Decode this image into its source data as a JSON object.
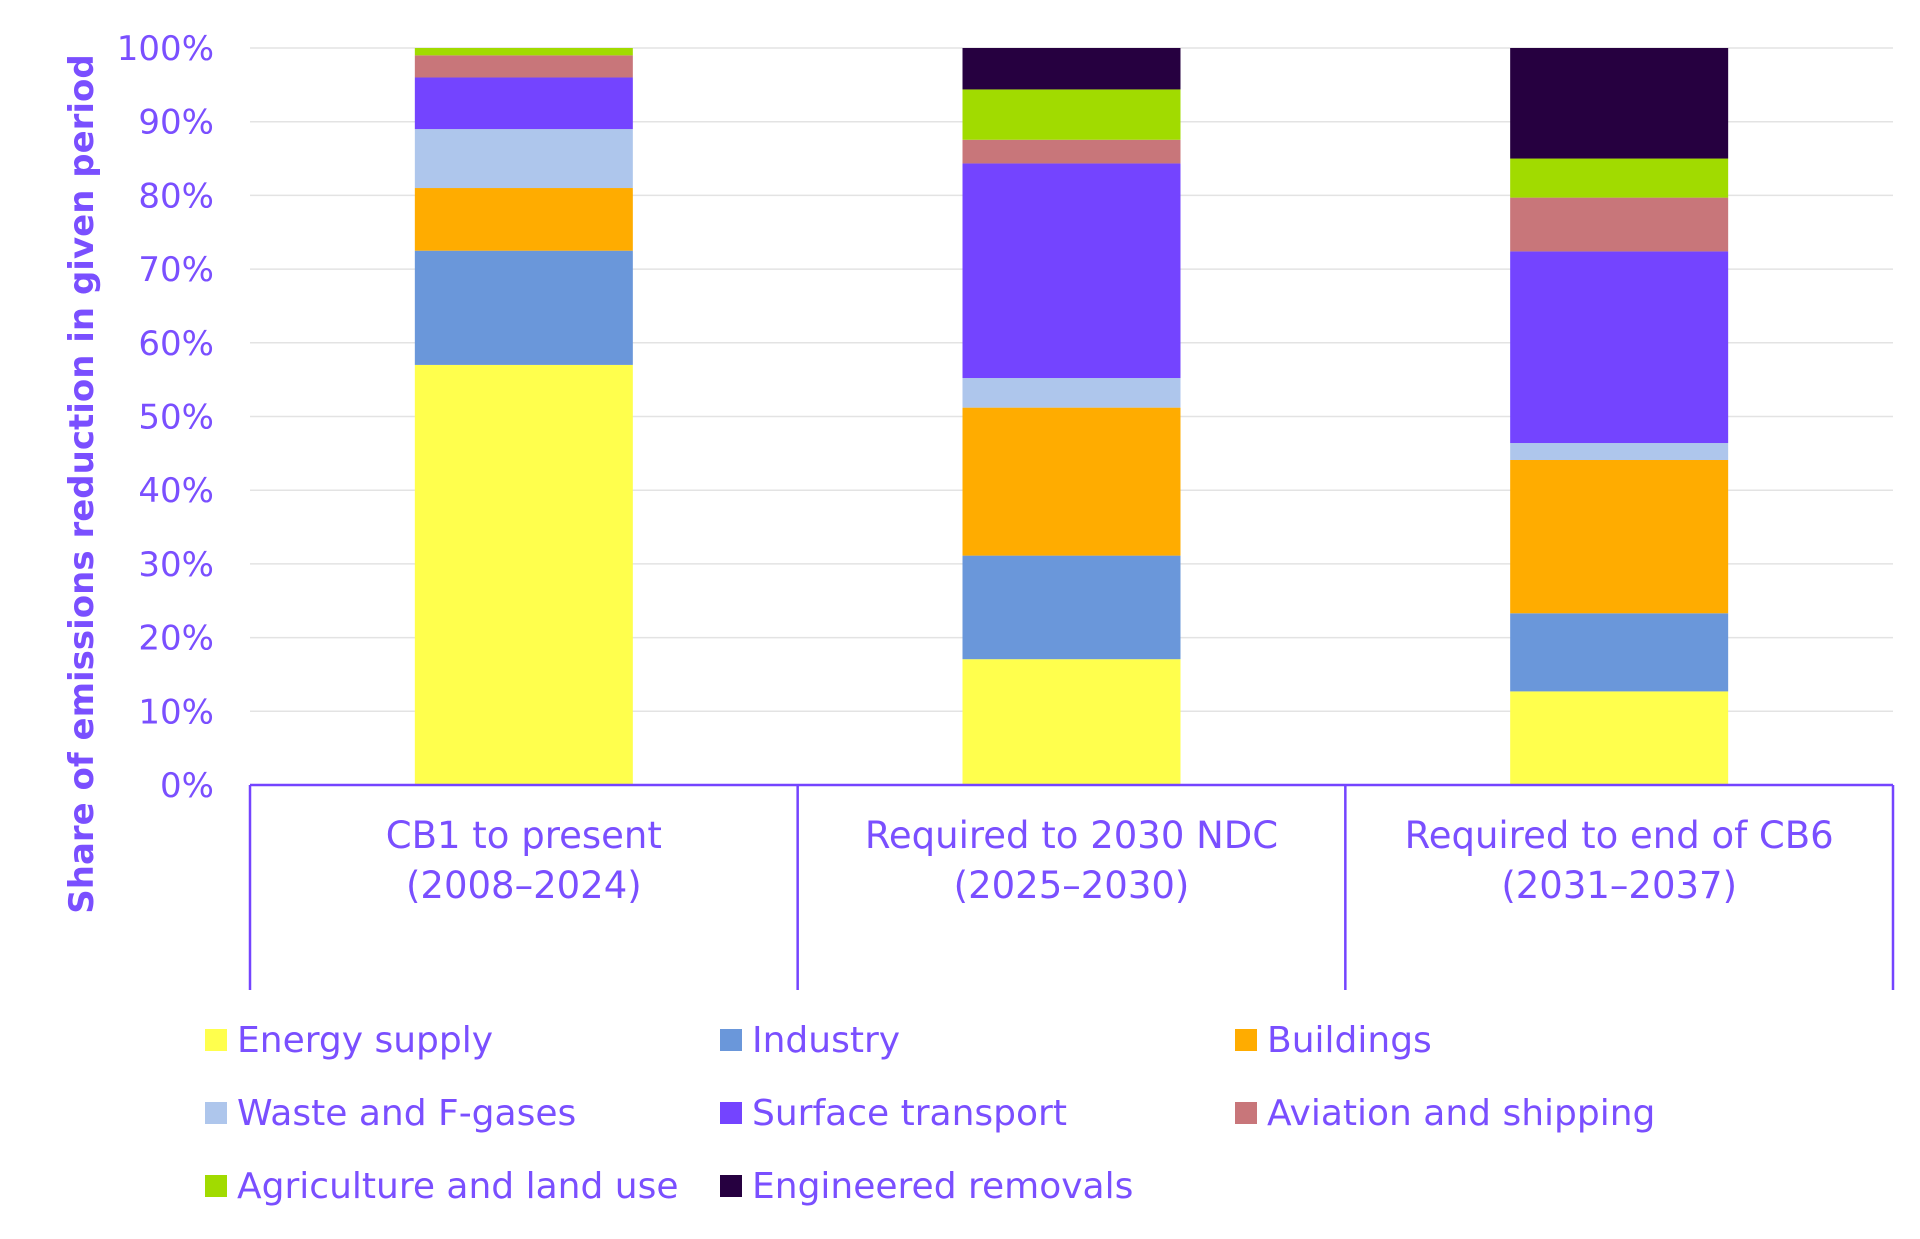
{
  "chart_data": {
    "type": "bar",
    "stacked": true,
    "title": "",
    "xlabel": "",
    "ylabel": "Share of emissions reduction in given period",
    "ylim": [
      0,
      100
    ],
    "ytick_values": [
      0,
      10,
      20,
      30,
      40,
      50,
      60,
      70,
      80,
      90,
      100
    ],
    "ytick_labels": [
      "0%",
      "10%",
      "20%",
      "30%",
      "40%",
      "50%",
      "60%",
      "70%",
      "80%",
      "90%",
      "100%"
    ],
    "grid": true,
    "legend_position": "bottom",
    "categories": [
      [
        "CB1 to present",
        "(2008–2024)"
      ],
      [
        "Required to 2030 NDC",
        "(2025–2030)"
      ],
      [
        "Required to end of CB6",
        "(2031–2037)"
      ]
    ],
    "series": [
      {
        "name": "Energy supply",
        "color": "#ffff4d",
        "values": [
          57,
          17,
          12.7
        ]
      },
      {
        "name": "Industry",
        "color": "#6a97da",
        "values": [
          15.5,
          14,
          10.6
        ]
      },
      {
        "name": "Buildings",
        "color": "#ffac00",
        "values": [
          8.5,
          20,
          20.8
        ]
      },
      {
        "name": "Waste and F-gases",
        "color": "#aec6ec",
        "values": [
          8,
          4,
          2.3
        ]
      },
      {
        "name": "Surface transport",
        "color": "#7444ff",
        "values": [
          7,
          29,
          26
        ]
      },
      {
        "name": "Aviation and shipping",
        "color": "#c8767a",
        "values": [
          3,
          3.2,
          7.3
        ]
      },
      {
        "name": "Agriculture and land use",
        "color": "#a1db00",
        "values": [
          1,
          6.8,
          5.3
        ]
      },
      {
        "name": "Engineered removals",
        "color": "#260040",
        "values": [
          0,
          5.6,
          15
        ]
      }
    ],
    "axis_color": "#7444ff",
    "text_color": "#7a4fff"
  }
}
